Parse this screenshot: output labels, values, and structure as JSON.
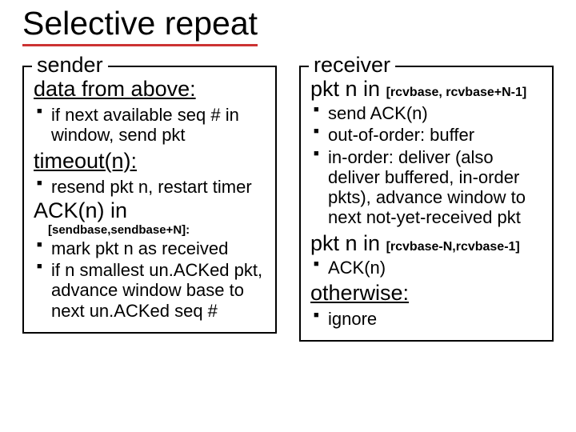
{
  "title": "Selective repeat",
  "colors": {
    "underline": "#cc3333",
    "text": "#000000",
    "background": "#ffffff"
  },
  "sender": {
    "legend": "sender",
    "section1": {
      "heading": "data from above:",
      "bullets": [
        "if next available seq # in window, send pkt"
      ]
    },
    "section2": {
      "heading": "timeout(n):",
      "bullets": [
        "resend pkt n, restart timer"
      ]
    },
    "section3": {
      "heading": "ACK(n) in",
      "range": "[sendbase,sendbase+N]:",
      "bullets": [
        "mark pkt n as received",
        "if n smallest un.ACKed pkt, advance window base to next un.ACKed seq #"
      ]
    }
  },
  "receiver": {
    "legend": "receiver",
    "section1": {
      "heading": "pkt n in ",
      "range": "[rcvbase, rcvbase+N-1]",
      "bullets": [
        "send ACK(n)",
        "out-of-order: buffer",
        "in-order: deliver (also deliver buffered, in-order pkts), advance window to next not-yet-received pkt"
      ]
    },
    "section2": {
      "heading": "pkt n in ",
      "range": "[rcvbase-N,rcvbase-1]",
      "bullets": [
        "ACK(n)"
      ]
    },
    "section3": {
      "heading": "otherwise:",
      "bullets": [
        "ignore"
      ]
    }
  }
}
